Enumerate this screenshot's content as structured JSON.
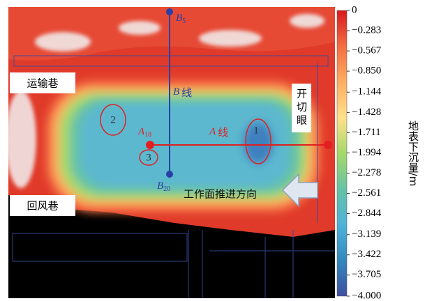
{
  "annotations": {
    "haulage_roadway": "运输巷",
    "return_roadway": "回风巷",
    "open_cut": "开切眼",
    "line_b": {
      "letter": "B",
      "suffix": "线"
    },
    "line_a": {
      "letter": "A",
      "suffix": "线"
    },
    "advance_direction": "工作面推进方向",
    "point_a18": {
      "letter": "A",
      "sub": "18"
    },
    "point_b5": {
      "letter": "B",
      "sub": "5"
    },
    "point_b20": {
      "letter": "B",
      "sub": "20"
    },
    "regions": [
      "1",
      "2",
      "3"
    ]
  },
  "colorbar": {
    "title": "地表下沉量/m",
    "range": [
      0,
      -4
    ],
    "colors": [
      "#d7191c",
      "#f46d43",
      "#fdae61",
      "#fee08b",
      "#a6d96a",
      "#66c2a5",
      "#4fb3d9",
      "#3288bd",
      "#3f4fa0"
    ],
    "ticks": [
      0,
      {
        "value": -0.283,
        "label": "−0.283"
      },
      {
        "value": -0.567,
        "label": "−0.567"
      },
      {
        "value": -0.85,
        "label": "−0.850"
      },
      {
        "value": -1.144,
        "label": "−1.144"
      },
      {
        "value": -1.428,
        "label": "−1.428"
      },
      {
        "value": -1.711,
        "label": "−1.711"
      },
      {
        "value": -1.994,
        "label": "−1.994"
      },
      {
        "value": -2.278,
        "label": "−2.278"
      },
      {
        "value": -2.561,
        "label": "−2.561"
      },
      {
        "value": -2.844,
        "label": "−2.844"
      },
      {
        "value": -3.139,
        "label": "−3.139"
      },
      {
        "value": -3.422,
        "label": "−3.422"
      },
      {
        "value": -3.705,
        "label": "−3.705"
      },
      {
        "value": -4,
        "label": "−4.000"
      }
    ]
  }
}
